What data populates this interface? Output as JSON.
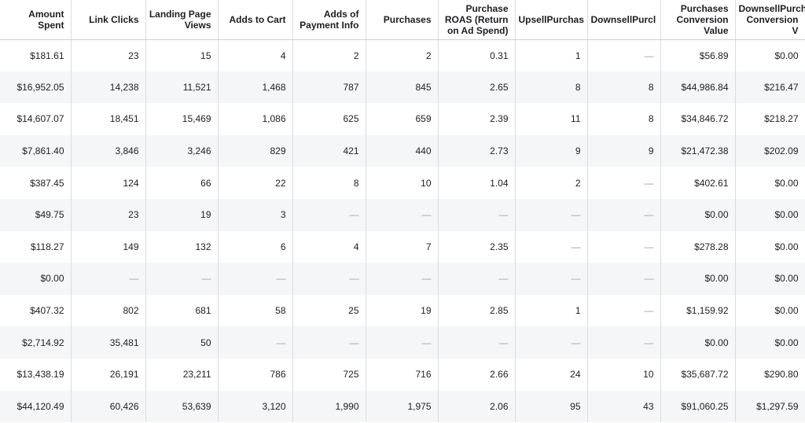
{
  "table": {
    "headers": [
      "Amount Spent",
      "Link Clicks",
      "Landing Page Views",
      "Adds to Cart",
      "Adds of Payment Info",
      "Purchases",
      "Purchase ROAS (Return on Ad Spend)",
      "UpsellPurchas",
      "DownsellPurcl",
      "Purchases Conversion Value",
      "DownsellPurch Conversion V"
    ],
    "rows": [
      [
        "$181.61",
        "23",
        "15",
        "4",
        "2",
        "2",
        "0.31",
        "1",
        "—",
        "$56.89",
        "$0.00"
      ],
      [
        "$16,952.05",
        "14,238",
        "11,521",
        "1,468",
        "787",
        "845",
        "2.65",
        "8",
        "8",
        "$44,986.84",
        "$216.47"
      ],
      [
        "$14,607.07",
        "18,451",
        "15,469",
        "1,086",
        "625",
        "659",
        "2.39",
        "11",
        "8",
        "$34,846.72",
        "$218.27"
      ],
      [
        "$7,861.40",
        "3,846",
        "3,246",
        "829",
        "421",
        "440",
        "2.73",
        "9",
        "9",
        "$21,472.38",
        "$202.09"
      ],
      [
        "$387.45",
        "124",
        "66",
        "22",
        "8",
        "10",
        "1.04",
        "2",
        "—",
        "$402.61",
        "$0.00"
      ],
      [
        "$49.75",
        "23",
        "19",
        "3",
        "—",
        "—",
        "—",
        "—",
        "—",
        "$0.00",
        "$0.00"
      ],
      [
        "$118.27",
        "149",
        "132",
        "6",
        "4",
        "7",
        "2.35",
        "—",
        "—",
        "$278.28",
        "$0.00"
      ],
      [
        "$0.00",
        "—",
        "—",
        "—",
        "—",
        "—",
        "—",
        "—",
        "—",
        "$0.00",
        "$0.00"
      ],
      [
        "$407.32",
        "802",
        "681",
        "58",
        "25",
        "19",
        "2.85",
        "1",
        "—",
        "$1,159.92",
        "$0.00"
      ],
      [
        "$2,714.92",
        "35,481",
        "50",
        "—",
        "—",
        "—",
        "—",
        "—",
        "—",
        "$0.00",
        "$0.00"
      ],
      [
        "$13,438.19",
        "26,191",
        "23,211",
        "786",
        "725",
        "716",
        "2.66",
        "24",
        "10",
        "$35,687.72",
        "$290.80"
      ],
      [
        "$44,120.49",
        "60,426",
        "53,639",
        "3,120",
        "1,990",
        "1,975",
        "2.06",
        "95",
        "43",
        "$91,060.25",
        "$1,297.59"
      ]
    ]
  }
}
